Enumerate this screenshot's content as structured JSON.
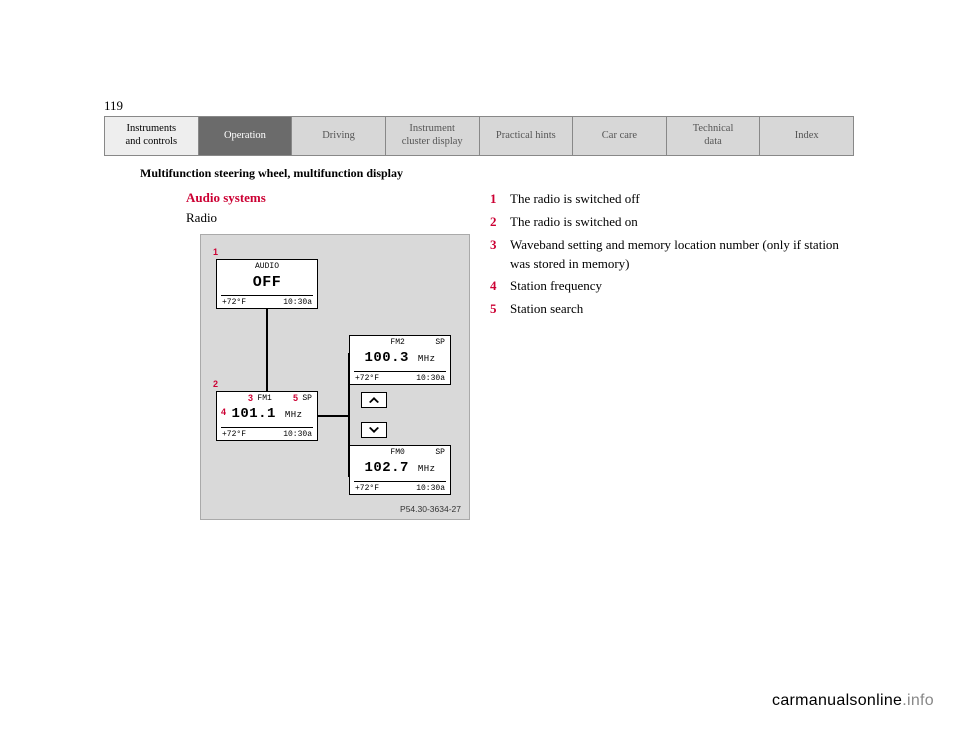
{
  "page_number": "119",
  "nav": {
    "items": [
      {
        "label": "Instruments\nand controls",
        "bg": "#eeeeee",
        "fg": "#000000"
      },
      {
        "label": "Operation",
        "bg": "#6b6b6b",
        "fg": "#ffffff"
      },
      {
        "label": "Driving",
        "bg": "#d7d7d7",
        "fg": "#555555"
      },
      {
        "label": "Instrument\ncluster display",
        "bg": "#d7d7d7",
        "fg": "#555555"
      },
      {
        "label": "Practical hints",
        "bg": "#d7d7d7",
        "fg": "#555555"
      },
      {
        "label": "Car care",
        "bg": "#d7d7d7",
        "fg": "#555555"
      },
      {
        "label": "Technical\ndata",
        "bg": "#d7d7d7",
        "fg": "#555555"
      },
      {
        "label": "Index",
        "bg": "#d7d7d7",
        "fg": "#555555"
      }
    ]
  },
  "breadcrumb": "Multifunction steering wheel, multifunction display",
  "section_title": "Audio systems",
  "section_title_color": "#cc0033",
  "subtitle": "Radio",
  "diagram": {
    "bg": "#d9d9d9",
    "label": "P54.30-3634-27",
    "red_color": "#cc0033",
    "lcds": {
      "off": {
        "top_center": "AUDIO",
        "main": "OFF",
        "temp": "+72°F",
        "time": "10:30a"
      },
      "fm1": {
        "band": "FM1",
        "sp": "SP",
        "freq": "101.1",
        "unit": "MHz",
        "temp": "+72°F",
        "time": "10:30a"
      },
      "fm2": {
        "band": "FM2",
        "sp": "SP",
        "freq": "100.3",
        "unit": "MHz",
        "temp": "+72°F",
        "time": "10:30a"
      },
      "fm0": {
        "band": "FM0",
        "sp": "SP",
        "freq": "102.7",
        "unit": "MHz",
        "temp": "+72°F",
        "time": "10:30a"
      }
    },
    "callouts": {
      "1": "1",
      "2": "2",
      "3": "3",
      "4": "4",
      "5": "5"
    }
  },
  "legend": {
    "red_color": "#cc0033",
    "items": [
      {
        "n": "1",
        "text": "The radio is switched off"
      },
      {
        "n": "2",
        "text": "The radio is switched on"
      },
      {
        "n": "3",
        "text": "Waveband setting and memory location number (only if station was stored in memory)"
      },
      {
        "n": "4",
        "text": "Station frequency"
      },
      {
        "n": "5",
        "text": "Station search"
      }
    ]
  },
  "watermark": {
    "a": "carmanualsonline",
    "b": ".info",
    "color_b": "#888888"
  }
}
